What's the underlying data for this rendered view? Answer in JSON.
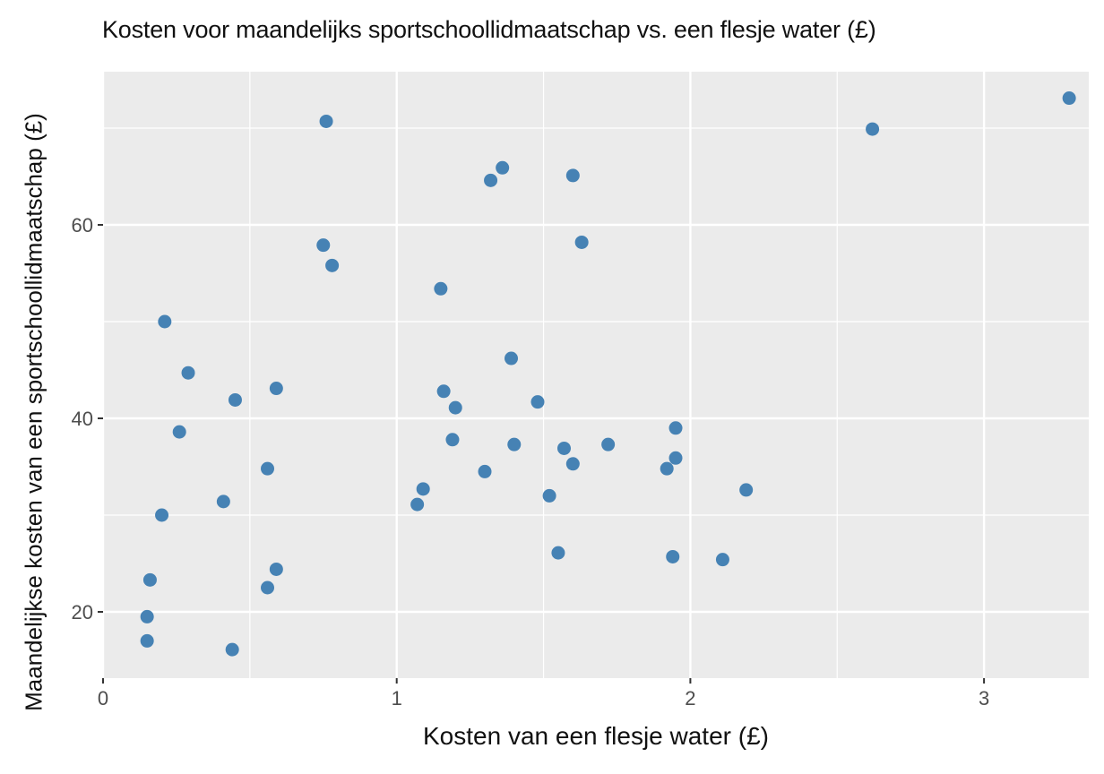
{
  "chart_data": {
    "type": "scatter",
    "title": "Kosten voor maandelijks sportschoollidmaatschap vs. een flesje water (£)",
    "xlabel": "Kosten van een flesje water (£)",
    "ylabel": "Maandelijkse kosten van een sportschoollidmaatschap (£)",
    "xlim": [
      0,
      3.35
    ],
    "ylim": [
      13,
      76
    ],
    "x_ticks": [
      0,
      1,
      2,
      3
    ],
    "x_tick_labels": [
      "0",
      "1",
      "2",
      "3"
    ],
    "y_ticks": [
      20,
      40,
      60
    ],
    "y_tick_labels": [
      "20",
      "40",
      "60"
    ],
    "grid": true,
    "legend": "none",
    "point_color": "#4682b4",
    "panel_background": "#ebebeb",
    "grid_color": "#ffffff",
    "points": [
      {
        "x": 0.76,
        "y": 70.7
      },
      {
        "x": 0.75,
        "y": 57.9
      },
      {
        "x": 0.78,
        "y": 55.8
      },
      {
        "x": 0.21,
        "y": 50.0
      },
      {
        "x": 0.29,
        "y": 44.7
      },
      {
        "x": 0.45,
        "y": 41.9
      },
      {
        "x": 0.59,
        "y": 43.1
      },
      {
        "x": 0.26,
        "y": 38.6
      },
      {
        "x": 0.56,
        "y": 34.8
      },
      {
        "x": 0.41,
        "y": 31.4
      },
      {
        "x": 0.2,
        "y": 30.0
      },
      {
        "x": 0.59,
        "y": 24.4
      },
      {
        "x": 0.56,
        "y": 22.5
      },
      {
        "x": 0.16,
        "y": 23.3
      },
      {
        "x": 0.15,
        "y": 19.5
      },
      {
        "x": 0.15,
        "y": 17.0
      },
      {
        "x": 0.44,
        "y": 16.1
      },
      {
        "x": 1.32,
        "y": 64.6
      },
      {
        "x": 1.36,
        "y": 65.9
      },
      {
        "x": 1.6,
        "y": 65.1
      },
      {
        "x": 1.63,
        "y": 58.2
      },
      {
        "x": 1.15,
        "y": 53.4
      },
      {
        "x": 1.39,
        "y": 46.2
      },
      {
        "x": 1.16,
        "y": 42.8
      },
      {
        "x": 1.2,
        "y": 41.1
      },
      {
        "x": 1.48,
        "y": 41.7
      },
      {
        "x": 1.19,
        "y": 37.8
      },
      {
        "x": 1.4,
        "y": 37.3
      },
      {
        "x": 1.57,
        "y": 36.9
      },
      {
        "x": 1.72,
        "y": 37.3
      },
      {
        "x": 1.6,
        "y": 35.3
      },
      {
        "x": 1.09,
        "y": 32.7
      },
      {
        "x": 1.07,
        "y": 31.1
      },
      {
        "x": 1.3,
        "y": 34.5
      },
      {
        "x": 1.52,
        "y": 32.0
      },
      {
        "x": 1.55,
        "y": 26.1
      },
      {
        "x": 1.95,
        "y": 39.0
      },
      {
        "x": 1.95,
        "y": 35.9
      },
      {
        "x": 1.92,
        "y": 34.8
      },
      {
        "x": 2.19,
        "y": 32.6
      },
      {
        "x": 1.94,
        "y": 25.7
      },
      {
        "x": 2.11,
        "y": 25.4
      },
      {
        "x": 2.62,
        "y": 69.9
      },
      {
        "x": 3.29,
        "y": 73.1
      }
    ]
  }
}
